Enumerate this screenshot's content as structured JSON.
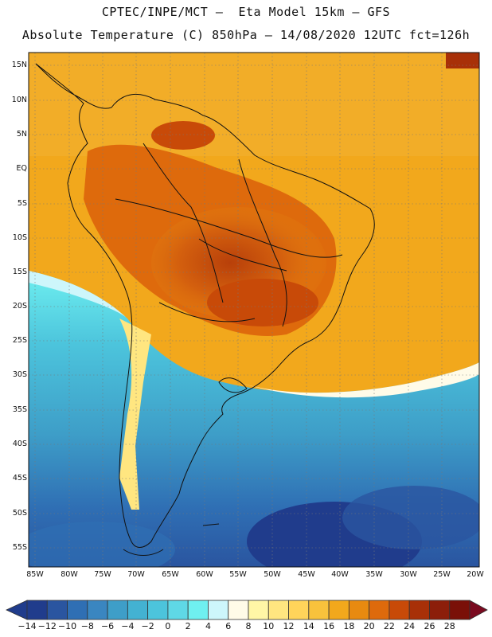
{
  "header": {
    "line1": "CPTEC/INPE/MCT –  Eta Model 15km – GFS",
    "line2": "Absolute Temperature (C) 850hPa – 14/08/2020 12UTC fct=126h"
  },
  "map": {
    "lat_labels": [
      "15N",
      "10N",
      "5N",
      "EQ",
      "5S",
      "10S",
      "15S",
      "20S",
      "25S",
      "30S",
      "35S",
      "40S",
      "45S",
      "50S",
      "55S"
    ],
    "lon_labels": [
      "85W",
      "80W",
      "75W",
      "70W",
      "65W",
      "60W",
      "55W",
      "50W",
      "45W",
      "40W",
      "35W",
      "30W",
      "25W",
      "20W"
    ],
    "gridlines": "dotted"
  },
  "colorbar": {
    "labels": [
      "-14",
      "-12",
      "-10",
      "-8",
      "-6",
      "-4",
      "-2",
      "0",
      "2",
      "4",
      "6",
      "8",
      "10",
      "12",
      "14",
      "16",
      "18",
      "20",
      "22",
      "24",
      "26",
      "28"
    ],
    "colors": [
      "#203c8c",
      "#2a55a0",
      "#2f6fb4",
      "#3a86c0",
      "#3e9ec8",
      "#43b2d2",
      "#4cc4dc",
      "#5fd8e6",
      "#6ff0f0",
      "#cdf6fb",
      "#fffbe8",
      "#fff6a6",
      "#ffe680",
      "#ffd45a",
      "#f8c23c",
      "#f2a81c",
      "#e88a10",
      "#de6a0c",
      "#c84a08",
      "#a83008",
      "#8c1e0a",
      "#7a1008"
    ]
  }
}
